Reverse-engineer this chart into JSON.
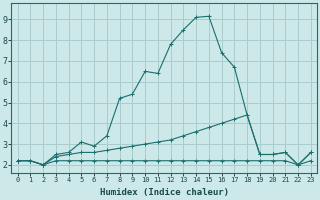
{
  "xlabel": "Humidex (Indice chaleur)",
  "bg_color": "#cce8e8",
  "grid_color": "#aacccc",
  "line_color": "#1a6e6e",
  "xlim": [
    -0.5,
    23.5
  ],
  "ylim": [
    1.6,
    9.8
  ],
  "xticks": [
    0,
    1,
    2,
    3,
    4,
    5,
    6,
    7,
    8,
    9,
    10,
    11,
    12,
    13,
    14,
    15,
    16,
    17,
    18,
    19,
    20,
    21,
    22,
    23
  ],
  "yticks": [
    2,
    3,
    4,
    5,
    6,
    7,
    8,
    9
  ],
  "line1_x": [
    0,
    1,
    2,
    3,
    4,
    5,
    6,
    7,
    8,
    9,
    10,
    11,
    12,
    13,
    14,
    15,
    16,
    17,
    18,
    19,
    20,
    21,
    22,
    23
  ],
  "line1_y": [
    2.2,
    2.2,
    2.0,
    2.5,
    2.6,
    3.1,
    2.9,
    3.4,
    5.2,
    5.4,
    6.5,
    6.4,
    7.8,
    8.5,
    9.1,
    9.15,
    7.4,
    6.7,
    4.4,
    2.5,
    2.5,
    2.6,
    2.0,
    2.6
  ],
  "line2_x": [
    0,
    1,
    2,
    3,
    4,
    5,
    6,
    7,
    8,
    9,
    10,
    11,
    12,
    13,
    14,
    15,
    16,
    17,
    18,
    19,
    20,
    21,
    22,
    23
  ],
  "line2_y": [
    2.2,
    2.2,
    2.0,
    2.4,
    2.5,
    2.6,
    2.6,
    2.7,
    2.8,
    2.9,
    3.0,
    3.1,
    3.2,
    3.4,
    3.6,
    3.8,
    4.0,
    4.2,
    4.4,
    2.5,
    2.5,
    2.6,
    2.0,
    2.6
  ],
  "line3_x": [
    0,
    1,
    2,
    3,
    4,
    5,
    6,
    7,
    8,
    9,
    10,
    11,
    12,
    13,
    14,
    15,
    16,
    17,
    18,
    19,
    20,
    21,
    22,
    23
  ],
  "line3_y": [
    2.2,
    2.2,
    2.0,
    2.2,
    2.2,
    2.2,
    2.2,
    2.2,
    2.2,
    2.2,
    2.2,
    2.2,
    2.2,
    2.2,
    2.2,
    2.2,
    2.2,
    2.2,
    2.2,
    2.2,
    2.2,
    2.2,
    2.0,
    2.2
  ],
  "xlabel_fontsize": 6.5,
  "ytick_fontsize": 6.0,
  "xtick_fontsize": 5.0
}
